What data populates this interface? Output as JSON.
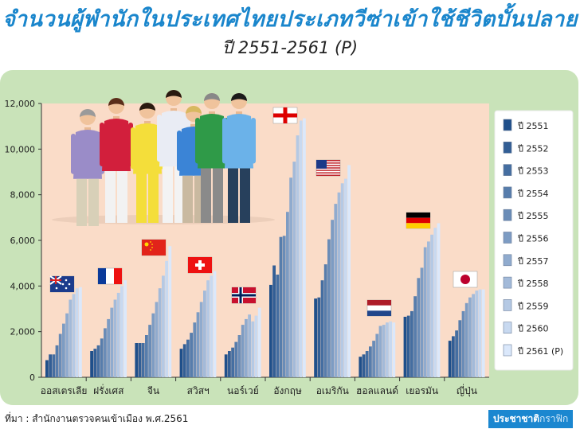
{
  "title": "จำนวนผู้พำนักในประเทศไทยประเภทวีซ่าเข้าใช้ชีวิตบั้นปลาย",
  "subtitle": "ปี 2551-2561 (P)",
  "source": "ที่มา : สำนักงานตรวจคนเข้าเมือง พ.ศ.2561",
  "brand": {
    "strong": "ประชาชาติ",
    "light": "กราฟิก"
  },
  "chart_data": {
    "type": "bar",
    "categories": [
      "ออสเตรเลีย",
      "ฝรั่งเศส",
      "จีน",
      "สวิสฯ",
      "นอร์เวย์",
      "อังกฤษ",
      "อเมริกัน",
      "ฮอลแลนด์",
      "เยอรมัน",
      "ญี่ปุ่น"
    ],
    "series": [
      {
        "name": "ปี 2551",
        "values": [
          750,
          1150,
          1500,
          1250,
          1000,
          4050,
          3450,
          900,
          2650,
          1600
        ]
      },
      {
        "name": "ปี 2552",
        "values": [
          1000,
          1250,
          1500,
          1450,
          1150,
          4900,
          3500,
          1000,
          2700,
          1800
        ]
      },
      {
        "name": "ปี 2553",
        "values": [
          1000,
          1400,
          1500,
          1650,
          1300,
          4500,
          4250,
          1150,
          2900,
          2050
        ]
      },
      {
        "name": "ปี 2554",
        "values": [
          1400,
          1700,
          1850,
          1950,
          1550,
          6150,
          4950,
          1350,
          3550,
          2500
        ]
      },
      {
        "name": "ปี 2555",
        "values": [
          1900,
          2150,
          2300,
          2400,
          1850,
          6200,
          6050,
          1600,
          4350,
          2900
        ]
      },
      {
        "name": "ปี 2556",
        "values": [
          2350,
          2550,
          2800,
          2850,
          2300,
          7250,
          6900,
          1900,
          4800,
          3250
        ]
      },
      {
        "name": "ปี 2557",
        "values": [
          2800,
          3050,
          3300,
          3300,
          2550,
          8750,
          7600,
          2250,
          5700,
          3500
        ]
      },
      {
        "name": "ปี 2558",
        "values": [
          3400,
          3400,
          3900,
          3800,
          2750,
          9450,
          8100,
          2300,
          5950,
          3650
        ]
      },
      {
        "name": "ปี 2559",
        "values": [
          3650,
          3700,
          4450,
          4250,
          2450,
          10600,
          8500,
          2400,
          6250,
          3800
        ]
      },
      {
        "name": "ปี 2560",
        "values": [
          3900,
          4000,
          5100,
          4450,
          2700,
          11250,
          8700,
          2450,
          6550,
          3850
        ]
      },
      {
        "name": "ปี 2561 (P)",
        "values": [
          3950,
          4250,
          5750,
          4650,
          3050,
          11350,
          9300,
          2400,
          6750,
          3850
        ]
      }
    ],
    "yticks": [
      "0",
      "2,000",
      "4,000",
      "6,000",
      "8,000",
      "10,000",
      "12,000"
    ],
    "ylim": [
      0,
      12000
    ],
    "legend_position": "right",
    "grid": false,
    "colors": {
      "dark": "#1f4f8a",
      "light": "#dbe8fb",
      "panel": "#c9e3b9",
      "plot": "#fadcc8",
      "title": "#1a86cc"
    }
  },
  "illustration": {
    "people": "group-of-seven-people-illustration",
    "flags": [
      "australia-flag-icon",
      "france-flag-icon",
      "china-flag-icon",
      "switzerland-flag-icon",
      "norway-flag-icon",
      "england-flag-icon",
      "usa-flag-icon",
      "netherlands-flag-icon",
      "germany-flag-icon",
      "japan-flag-icon"
    ]
  }
}
